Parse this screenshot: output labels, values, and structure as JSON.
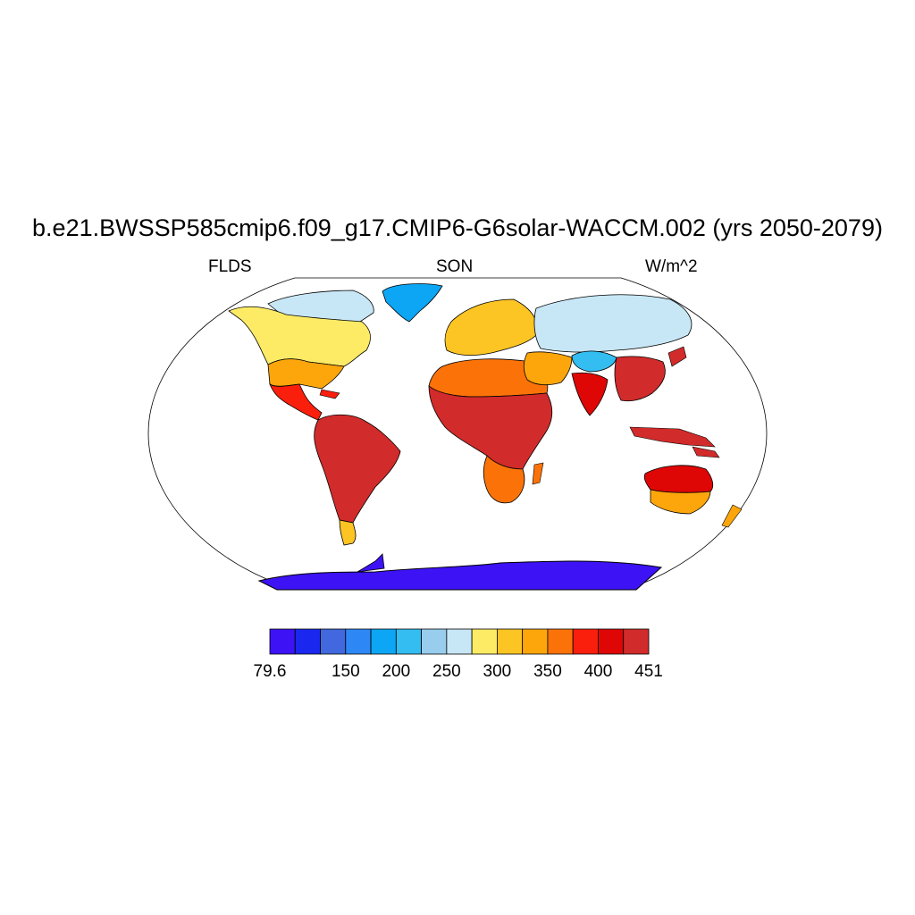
{
  "title": "b.e21.BWSSP585cmip6.f09_g17.CMIP6-G6solar-WACCM.002 (yrs 2050-2079)",
  "subtitle_left": "FLDS",
  "subtitle_center": "SON",
  "subtitle_right": "W/m^2",
  "map": {
    "projection": "robinson",
    "variable": "FLDS",
    "season": "SON",
    "regions": [
      {
        "name": "antarctica",
        "level": 1
      },
      {
        "name": "greenland",
        "level": 5
      },
      {
        "name": "canada-north",
        "level": 8
      },
      {
        "name": "north-america",
        "level": 9
      },
      {
        "name": "usa-east",
        "level": 11
      },
      {
        "name": "central-america",
        "level": 13
      },
      {
        "name": "south-america",
        "level": 15
      },
      {
        "name": "patagonia",
        "level": 10
      },
      {
        "name": "europe",
        "level": 10
      },
      {
        "name": "north-africa",
        "level": 12
      },
      {
        "name": "central-africa",
        "level": 15
      },
      {
        "name": "southern-africa",
        "level": 12
      },
      {
        "name": "siberia",
        "level": 8
      },
      {
        "name": "tibet",
        "level": 6
      },
      {
        "name": "middle-east",
        "level": 11
      },
      {
        "name": "india",
        "level": 14
      },
      {
        "name": "southeast-asia",
        "level": 15
      },
      {
        "name": "australia-north",
        "level": 14
      },
      {
        "name": "australia-south",
        "level": 11
      }
    ]
  },
  "colorbar": {
    "colors": [
      "#3d12f4",
      "#1a27ef",
      "#4168de",
      "#2d88f5",
      "#0ca6f5",
      "#33bdf1",
      "#98cded",
      "#c8e7f6",
      "#fdeb66",
      "#fcc523",
      "#fca60c",
      "#fb7308",
      "#fa1e0c",
      "#df0606",
      "#d22b2b"
    ],
    "labels": [
      "79.6",
      "",
      "150",
      "200",
      "250",
      "300",
      "350",
      "400",
      "451"
    ]
  }
}
